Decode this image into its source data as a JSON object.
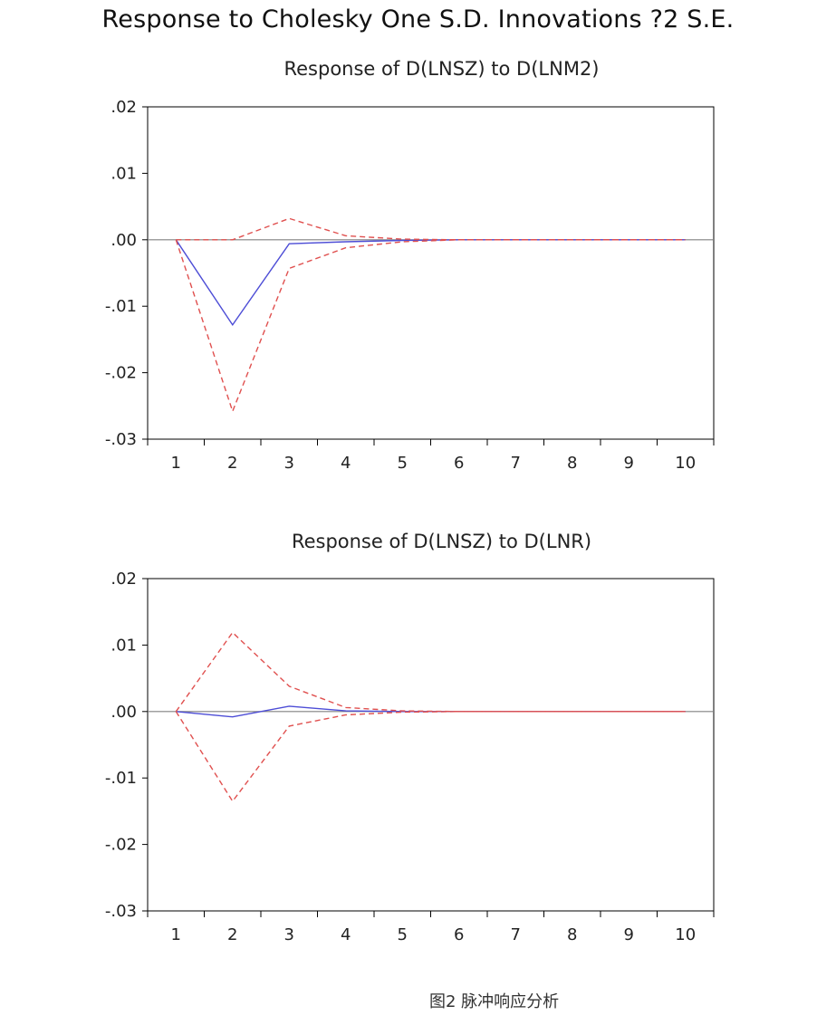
{
  "title": "Response to Cholesky One S.D. Innovations ?2 S.E.",
  "caption": "图2  脉冲响应分析",
  "colors": {
    "response": "#4d4dd6",
    "bands": "#e0504f",
    "zero_line": "#808080",
    "frame": "#000000"
  },
  "chart_data": [
    {
      "type": "line",
      "title": "Response of D(LNSZ) to D(LNM2)",
      "x": [
        1,
        2,
        3,
        4,
        5,
        6,
        7,
        8,
        9,
        10
      ],
      "ylim": [
        -0.03,
        0.02
      ],
      "y_ticks": [
        0.02,
        0.01,
        0.0,
        -0.01,
        -0.02,
        -0.03
      ],
      "y_tick_labels": [
        ".02",
        ".01",
        ".00",
        "-.01",
        "-.02",
        "-.03"
      ],
      "x_tick_labels": [
        "1",
        "2",
        "3",
        "4",
        "5",
        "6",
        "7",
        "8",
        "9",
        "10"
      ],
      "series": [
        {
          "role": "response",
          "values": [
            0.0,
            -0.0128,
            -0.0006,
            -0.0003,
            -0.0001,
            0.0,
            0.0,
            0.0,
            0.0,
            0.0
          ]
        },
        {
          "role": "upper",
          "values": [
            0.0,
            0.0,
            0.0032,
            0.0006,
            0.0001,
            0.0,
            0.0,
            0.0,
            0.0,
            0.0
          ]
        },
        {
          "role": "lower",
          "values": [
            0.0,
            -0.0258,
            -0.0043,
            -0.0012,
            -0.0003,
            0.0,
            0.0,
            0.0,
            0.0,
            0.0
          ]
        }
      ]
    },
    {
      "type": "line",
      "title": "Response of D(LNSZ) to D(LNR)",
      "x": [
        1,
        2,
        3,
        4,
        5,
        6,
        7,
        8,
        9,
        10
      ],
      "ylim": [
        -0.03,
        0.02
      ],
      "y_ticks": [
        0.02,
        0.01,
        0.0,
        -0.01,
        -0.02,
        -0.03
      ],
      "y_tick_labels": [
        ".02",
        ".01",
        ".00",
        "-.01",
        "-.02",
        "-.03"
      ],
      "x_tick_labels": [
        "1",
        "2",
        "3",
        "4",
        "5",
        "6",
        "7",
        "8",
        "9",
        "10"
      ],
      "series": [
        {
          "role": "response",
          "values": [
            0.0,
            -0.0008,
            0.0008,
            0.0001,
            0.0,
            0.0,
            0.0,
            0.0,
            0.0,
            0.0
          ]
        },
        {
          "role": "upper",
          "values": [
            0.0,
            0.0119,
            0.0038,
            0.0006,
            0.0001,
            0.0,
            0.0,
            0.0,
            0.0,
            0.0
          ]
        },
        {
          "role": "lower",
          "values": [
            0.0,
            -0.0135,
            -0.0022,
            -0.0005,
            -0.0001,
            0.0,
            0.0,
            0.0,
            0.0,
            0.0
          ]
        }
      ]
    }
  ]
}
